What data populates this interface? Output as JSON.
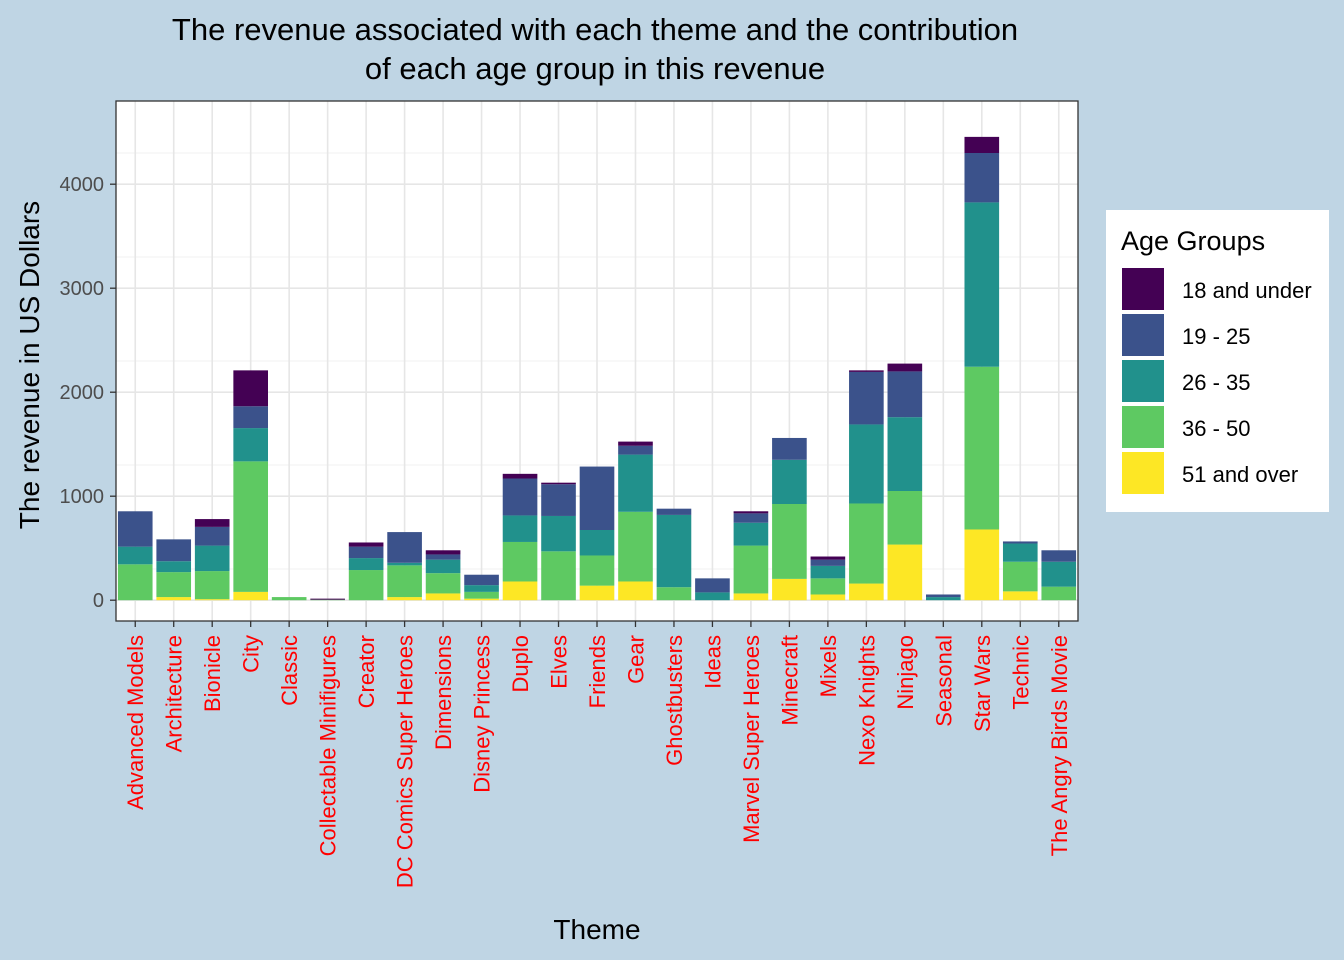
{
  "chart_data": {
    "type": "bar",
    "stacked": true,
    "title": "The revenue associated with each theme and the contribution of each age group in this revenue",
    "title_lines": [
      "The revenue associated with each theme and the contribution",
      "of each age group in this revenue"
    ],
    "xlabel": "Theme",
    "ylabel": "The revenue in US Dollars",
    "ylim": [
      -200,
      4800
    ],
    "yticks": [
      0,
      1000,
      2000,
      3000,
      4000
    ],
    "grid": true,
    "legend_title": "Age Groups",
    "legend_position": "right",
    "tick_label_color": "#ff0000",
    "categories": [
      "Advanced Models",
      "Architecture",
      "Bionicle",
      "City",
      "Classic",
      "Collectable Minifigures",
      "Creator",
      "DC Comics Super Heroes",
      "Dimensions",
      "Disney Princess",
      "Duplo",
      "Elves",
      "Friends",
      "Gear",
      "Ghostbusters",
      "Ideas",
      "Marvel Super Heroes",
      "Minecraft",
      "Mixels",
      "Nexo Knights",
      "Ninjago",
      "Seasonal",
      "Star Wars",
      "Technic",
      "The Angry Birds Movie"
    ],
    "series": [
      {
        "name": "51 and over",
        "color": "#fde725",
        "values": [
          0,
          30,
          10,
          80,
          0,
          0,
          0,
          30,
          65,
          15,
          180,
          0,
          140,
          180,
          0,
          0,
          65,
          205,
          55,
          160,
          535,
          0,
          680,
          85,
          0
        ]
      },
      {
        "name": "36 - 50",
        "color": "#5ec962",
        "values": [
          345,
          240,
          270,
          1255,
          30,
          5,
          290,
          305,
          195,
          65,
          380,
          470,
          290,
          670,
          125,
          0,
          460,
          720,
          155,
          770,
          515,
          0,
          1565,
          285,
          130
        ]
      },
      {
        "name": "26 - 35",
        "color": "#21918c",
        "values": [
          170,
          105,
          245,
          320,
          0,
          0,
          115,
          25,
          130,
          65,
          255,
          340,
          245,
          550,
          695,
          75,
          220,
          425,
          120,
          760,
          710,
          30,
          1580,
          175,
          240
        ]
      },
      {
        "name": "19 - 25",
        "color": "#3b528b",
        "values": [
          340,
          210,
          180,
          210,
          0,
          0,
          110,
          295,
          50,
          100,
          355,
          305,
          610,
          85,
          60,
          135,
          90,
          210,
          60,
          505,
          440,
          25,
          475,
          20,
          110
        ]
      },
      {
        "name": "18 and under",
        "color": "#440154",
        "values": [
          0,
          0,
          75,
          345,
          0,
          10,
          40,
          0,
          40,
          0,
          45,
          15,
          0,
          40,
          0,
          0,
          20,
          0,
          30,
          15,
          75,
          0,
          155,
          0,
          0
        ]
      }
    ],
    "legend_order": [
      "18 and under",
      "19 - 25",
      "26 - 35",
      "36 - 50",
      "51 and over"
    ]
  }
}
